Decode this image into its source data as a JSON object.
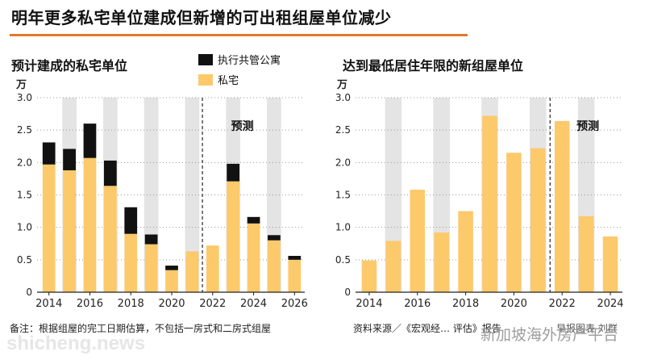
{
  "header": {
    "title": "明年更多私宅单位建成但新增的可出租组屋单位减少",
    "accent_color": "#e07a2e"
  },
  "left_panel": {
    "subtitle": "预计建成的私宅单位",
    "legend": [
      {
        "label": "执行共管公寓",
        "color": "#111111"
      },
      {
        "label": "私宅",
        "color": "#fcc96b"
      }
    ]
  },
  "right_panel": {
    "subtitle": "达到最低居住年限的新组屋单位"
  },
  "footer": {
    "note": "备注：根据组屋的完工日期估算，不包括一房式和二房式组屋",
    "source": "资料来源／《宏观经… 评估》报告",
    "watermark_left": "shicheng.news",
    "watermark_right": "新加坡海外房产平台",
    "watermark_tail": "早报图表  刘群"
  },
  "chart_data": [
    {
      "type": "bar",
      "stacked": true,
      "title": "预计建成的私宅单位",
      "ylabel": "万",
      "ylim": [
        0,
        3.0
      ],
      "yticks": [
        "0",
        "0.5",
        "1.0",
        "1.5",
        "2.0",
        "2.5",
        "3.0"
      ],
      "categories": [
        "2014",
        "2015",
        "2016",
        "2017",
        "2018",
        "2019",
        "2020",
        "2021",
        "2022",
        "2023",
        "2024",
        "2025",
        "2026"
      ],
      "xtick_labels": [
        "2014",
        "2016",
        "2018",
        "2020",
        "2022",
        "2024",
        "2026"
      ],
      "forecast_label": "预测",
      "forecast_starts_after": "2021",
      "series": [
        {
          "name": "私宅",
          "color": "#fcc96b",
          "values": [
            1.97,
            1.88,
            2.07,
            1.64,
            0.9,
            0.74,
            0.34,
            0.63,
            0.72,
            1.71,
            1.06,
            0.8,
            0.5
          ]
        },
        {
          "name": "执行共管公寓",
          "color": "#111111",
          "values": [
            0.34,
            0.33,
            0.53,
            0.39,
            0.41,
            0.15,
            0.07,
            0,
            0,
            0.27,
            0.1,
            0.08,
            0.06
          ]
        }
      ]
    },
    {
      "type": "bar",
      "title": "达到最低居住年限的新组屋单位",
      "ylabel": "万",
      "ylim": [
        0,
        3.0
      ],
      "yticks": [
        "0",
        "0.5",
        "1.0",
        "1.5",
        "2.0",
        "2.5",
        "3.0"
      ],
      "categories": [
        "2014",
        "2015",
        "2016",
        "2017",
        "2018",
        "2019",
        "2020",
        "2021",
        "2022",
        "2023",
        "2024"
      ],
      "xtick_labels": [
        "2014",
        "2016",
        "2018",
        "2020",
        "2022",
        "2024"
      ],
      "forecast_label": "预测",
      "forecast_starts_after": "2021",
      "series": [
        {
          "color": "#fcc96b",
          "values": [
            0.49,
            0.79,
            1.58,
            0.92,
            1.25,
            2.72,
            2.15,
            2.22,
            2.64,
            1.17,
            0.86
          ]
        }
      ]
    }
  ]
}
